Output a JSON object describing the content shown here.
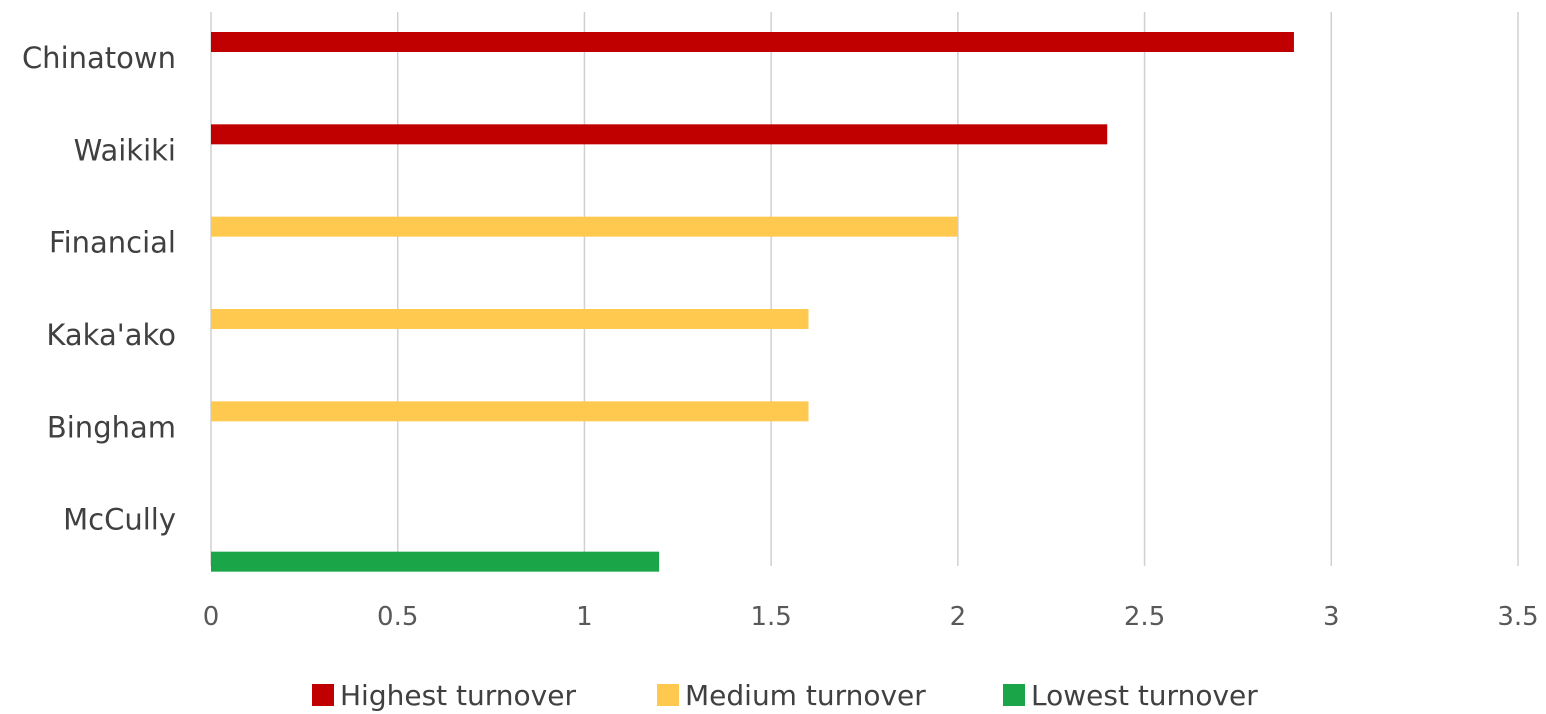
{
  "chart_data": {
    "type": "bar",
    "orientation": "horizontal",
    "categories": [
      "Chinatown",
      "Waikiki",
      "Financial",
      "Kaka'ako",
      "Bingham",
      "McCully"
    ],
    "values": [
      2.9,
      2.4,
      2.0,
      1.6,
      1.6,
      1.2
    ],
    "group": [
      "Highest turnover",
      "Highest turnover",
      "Medium turnover",
      "Medium turnover",
      "Medium turnover",
      "Lowest turnover"
    ],
    "legend": [
      {
        "name": "Highest turnover",
        "color": "#c00000"
      },
      {
        "name": "Medium turnover",
        "color": "#ffc94f"
      },
      {
        "name": "Lowest turnover",
        "color": "#1aa648"
      }
    ],
    "x_ticks": [
      "0",
      "0.5",
      "1",
      "1.5",
      "2",
      "2.5",
      "3",
      "3.5"
    ],
    "xlim": [
      0,
      3.5
    ],
    "grid": true,
    "legend_position": "bottom",
    "title": "",
    "xlabel": "",
    "ylabel": ""
  }
}
